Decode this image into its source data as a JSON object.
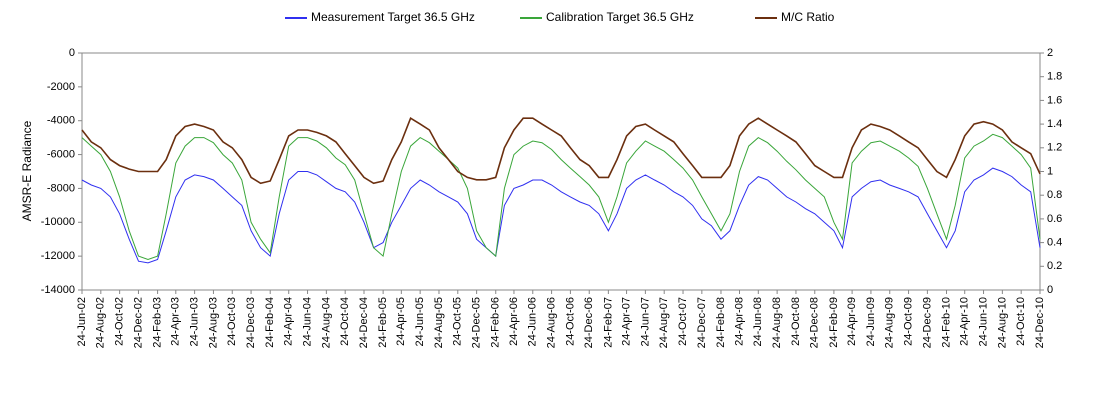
{
  "chart_data": {
    "type": "line",
    "y_label": "AMSR-E Radiance",
    "x": [
      "24-Jun-02",
      "24-Jul-02",
      "24-Aug-02",
      "24-Sep-02",
      "24-Oct-02",
      "24-Nov-02",
      "24-Dec-02",
      "24-Jan-03",
      "24-Feb-03",
      "24-Mar-03",
      "24-Apr-03",
      "24-May-03",
      "24-Jun-03",
      "24-Jul-03",
      "24-Aug-03",
      "24-Sep-03",
      "24-Oct-03",
      "24-Nov-03",
      "24-Dec-03",
      "24-Jan-04",
      "24-Feb-04",
      "24-Mar-04",
      "24-Apr-04",
      "24-May-04",
      "24-Jun-04",
      "24-Jul-04",
      "24-Aug-04",
      "24-Sep-04",
      "24-Oct-04",
      "24-Nov-04",
      "24-Dec-04",
      "24-Jan-05",
      "24-Feb-05",
      "24-Mar-05",
      "24-Apr-05",
      "24-May-05",
      "24-Jun-05",
      "24-Jul-05",
      "24-Aug-05",
      "24-Sep-05",
      "24-Oct-05",
      "24-Nov-05",
      "24-Dec-05",
      "24-Jan-06",
      "24-Feb-06",
      "24-Mar-06",
      "24-Apr-06",
      "24-May-06",
      "24-Jun-06",
      "24-Jul-06",
      "24-Aug-06",
      "24-Sep-06",
      "24-Oct-06",
      "24-Nov-06",
      "24-Dec-06",
      "24-Jan-07",
      "24-Feb-07",
      "24-Mar-07",
      "24-Apr-07",
      "24-May-07",
      "24-Jun-07",
      "24-Jul-07",
      "24-Aug-07",
      "24-Sep-07",
      "24-Oct-07",
      "24-Nov-07",
      "24-Dec-07",
      "24-Jan-08",
      "24-Feb-08",
      "24-Mar-08",
      "24-Apr-08",
      "24-May-08",
      "24-Jun-08",
      "24-Jul-08",
      "24-Aug-08",
      "24-Sep-08",
      "24-Oct-08",
      "24-Nov-08",
      "24-Dec-08",
      "24-Jan-09",
      "24-Feb-09",
      "24-Mar-09",
      "24-Apr-09",
      "24-May-09",
      "24-Jun-09",
      "24-Jul-09",
      "24-Aug-09",
      "24-Sep-09",
      "24-Oct-09",
      "24-Nov-09",
      "24-Dec-09",
      "24-Jan-10",
      "24-Feb-10",
      "24-Mar-10",
      "24-Apr-10",
      "24-May-10",
      "24-Jun-10",
      "24-Jul-10",
      "24-Aug-10",
      "24-Sep-10",
      "24-Oct-10",
      "24-Nov-10",
      "24-Dec-10"
    ],
    "series": [
      {
        "name": "Measurement Target 36.5 GHz",
        "color": "#3030f0",
        "values": [
          -7500,
          -7800,
          -8000,
          -8500,
          -9500,
          -11000,
          -12300,
          -12400,
          -12200,
          -10500,
          -8500,
          -7500,
          -7200,
          -7300,
          -7500,
          -8000,
          -8500,
          -9000,
          -10500,
          -11500,
          -12000,
          -9500,
          -7500,
          -7000,
          -7000,
          -7200,
          -7600,
          -8000,
          -8200,
          -8800,
          -10000,
          -11500,
          -11200,
          -10000,
          -9000,
          -8000,
          -7500,
          -7800,
          -8200,
          -8500,
          -8800,
          -9500,
          -11000,
          -11500,
          -12000,
          -9000,
          -8000,
          -7800,
          -7500,
          -7500,
          -7800,
          -8200,
          -8500,
          -8800,
          -9000,
          -9500,
          -10500,
          -9500,
          -8000,
          -7500,
          -7200,
          -7500,
          -7800,
          -8200,
          -8500,
          -9000,
          -9800,
          -10200,
          -11000,
          -10500,
          -9000,
          -7800,
          -7300,
          -7500,
          -8000,
          -8500,
          -8800,
          -9200,
          -9500,
          -10000,
          -10500,
          -11500,
          -8500,
          -8000,
          -7600,
          -7500,
          -7800,
          -8000,
          -8200,
          -8500,
          -9500,
          -10500,
          -11500,
          -10500,
          -8200,
          -7500,
          -7200,
          -6800,
          -7000,
          -7300,
          -7800,
          -8200,
          -11500
        ]
      },
      {
        "name": "Calibration Target 36.5 GHz",
        "color": "#3aa63a",
        "values": [
          -5000,
          -5500,
          -6000,
          -7000,
          -8500,
          -10500,
          -12000,
          -12200,
          -12000,
          -9500,
          -6500,
          -5500,
          -5000,
          -5000,
          -5300,
          -6000,
          -6500,
          -7500,
          -10000,
          -11000,
          -11800,
          -8500,
          -5500,
          -5000,
          -5000,
          -5200,
          -5600,
          -6200,
          -6600,
          -7500,
          -9500,
          -11500,
          -12000,
          -9500,
          -7000,
          -5500,
          -5000,
          -5300,
          -5800,
          -6300,
          -6800,
          -8000,
          -10500,
          -11500,
          -12000,
          -8000,
          -6000,
          -5500,
          -5200,
          -5300,
          -5700,
          -6300,
          -6800,
          -7300,
          -7800,
          -8500,
          -10000,
          -8500,
          -6500,
          -5800,
          -5200,
          -5500,
          -5800,
          -6300,
          -6800,
          -7500,
          -8500,
          -9500,
          -10500,
          -9500,
          -7000,
          -5500,
          -5000,
          -5300,
          -5800,
          -6400,
          -6900,
          -7500,
          -8000,
          -8500,
          -10000,
          -11000,
          -6500,
          -5800,
          -5300,
          -5200,
          -5500,
          -5800,
          -6200,
          -6700,
          -8000,
          -9500,
          -11000,
          -9000,
          -6200,
          -5500,
          -5200,
          -4800,
          -5000,
          -5500,
          -6000,
          -6800,
          -11000
        ]
      },
      {
        "name": "M/C Ratio",
        "color": "#6b2f0f",
        "axis": "y2",
        "values": [
          1.35,
          1.25,
          1.2,
          1.1,
          1.05,
          1.02,
          1.0,
          1.0,
          1.0,
          1.1,
          1.3,
          1.38,
          1.4,
          1.38,
          1.35,
          1.25,
          1.2,
          1.1,
          0.95,
          0.9,
          0.92,
          1.1,
          1.3,
          1.35,
          1.35,
          1.33,
          1.3,
          1.25,
          1.15,
          1.05,
          0.95,
          0.9,
          0.92,
          1.1,
          1.25,
          1.45,
          1.4,
          1.35,
          1.2,
          1.1,
          1.0,
          0.95,
          0.93,
          0.93,
          0.95,
          1.2,
          1.35,
          1.45,
          1.45,
          1.4,
          1.35,
          1.3,
          1.2,
          1.1,
          1.05,
          0.95,
          0.95,
          1.1,
          1.3,
          1.38,
          1.4,
          1.35,
          1.3,
          1.25,
          1.15,
          1.05,
          0.95,
          0.95,
          0.95,
          1.05,
          1.3,
          1.4,
          1.45,
          1.4,
          1.35,
          1.3,
          1.25,
          1.15,
          1.05,
          1.0,
          0.95,
          0.95,
          1.2,
          1.35,
          1.4,
          1.38,
          1.35,
          1.3,
          1.25,
          1.2,
          1.1,
          1.0,
          0.95,
          1.1,
          1.3,
          1.4,
          1.42,
          1.4,
          1.35,
          1.25,
          1.2,
          1.15,
          0.98
        ]
      }
    ],
    "xlim": [
      "24-Jun-02",
      "24-Dec-10"
    ],
    "xticks": [
      "24-Jun-02",
      "24-Aug-02",
      "24-Oct-02",
      "24-Dec-02",
      "24-Feb-03",
      "24-Apr-03",
      "24-Jun-03",
      "24-Aug-03",
      "24-Oct-03",
      "24-Dec-03",
      "24-Feb-04",
      "24-Apr-04",
      "24-Jun-04",
      "24-Aug-04",
      "24-Oct-04",
      "24-Dec-04",
      "24-Feb-05",
      "24-Apr-05",
      "24-Jun-05",
      "24-Aug-05",
      "24-Oct-05",
      "24-Dec-05",
      "24-Feb-06",
      "24-Apr-06",
      "24-Jun-06",
      "24-Aug-06",
      "24-Oct-06",
      "24-Dec-06",
      "24-Feb-07",
      "24-Apr-07",
      "24-Jun-07",
      "24-Aug-07",
      "24-Oct-07",
      "24-Dec-07",
      "24-Feb-08",
      "24-Apr-08",
      "24-Jun-08",
      "24-Aug-08",
      "24-Oct-08",
      "24-Dec-08",
      "24-Feb-09",
      "24-Apr-09",
      "24-Jun-09",
      "24-Aug-09",
      "24-Oct-09",
      "24-Dec-09",
      "24-Feb-10",
      "24-Apr-10",
      "24-Jun-10",
      "24-Aug-10",
      "24-Oct-10",
      "24-Dec-10"
    ],
    "ylim": [
      -14000,
      0
    ],
    "yticks": [
      -14000,
      -12000,
      -10000,
      -8000,
      -6000,
      -4000,
      -2000,
      0
    ],
    "y2lim": [
      0,
      2
    ],
    "y2ticks": [
      0,
      0.2,
      0.4,
      0.6,
      0.8,
      1,
      1.2,
      1.4,
      1.6,
      1.8,
      2
    ],
    "legend": "top"
  }
}
